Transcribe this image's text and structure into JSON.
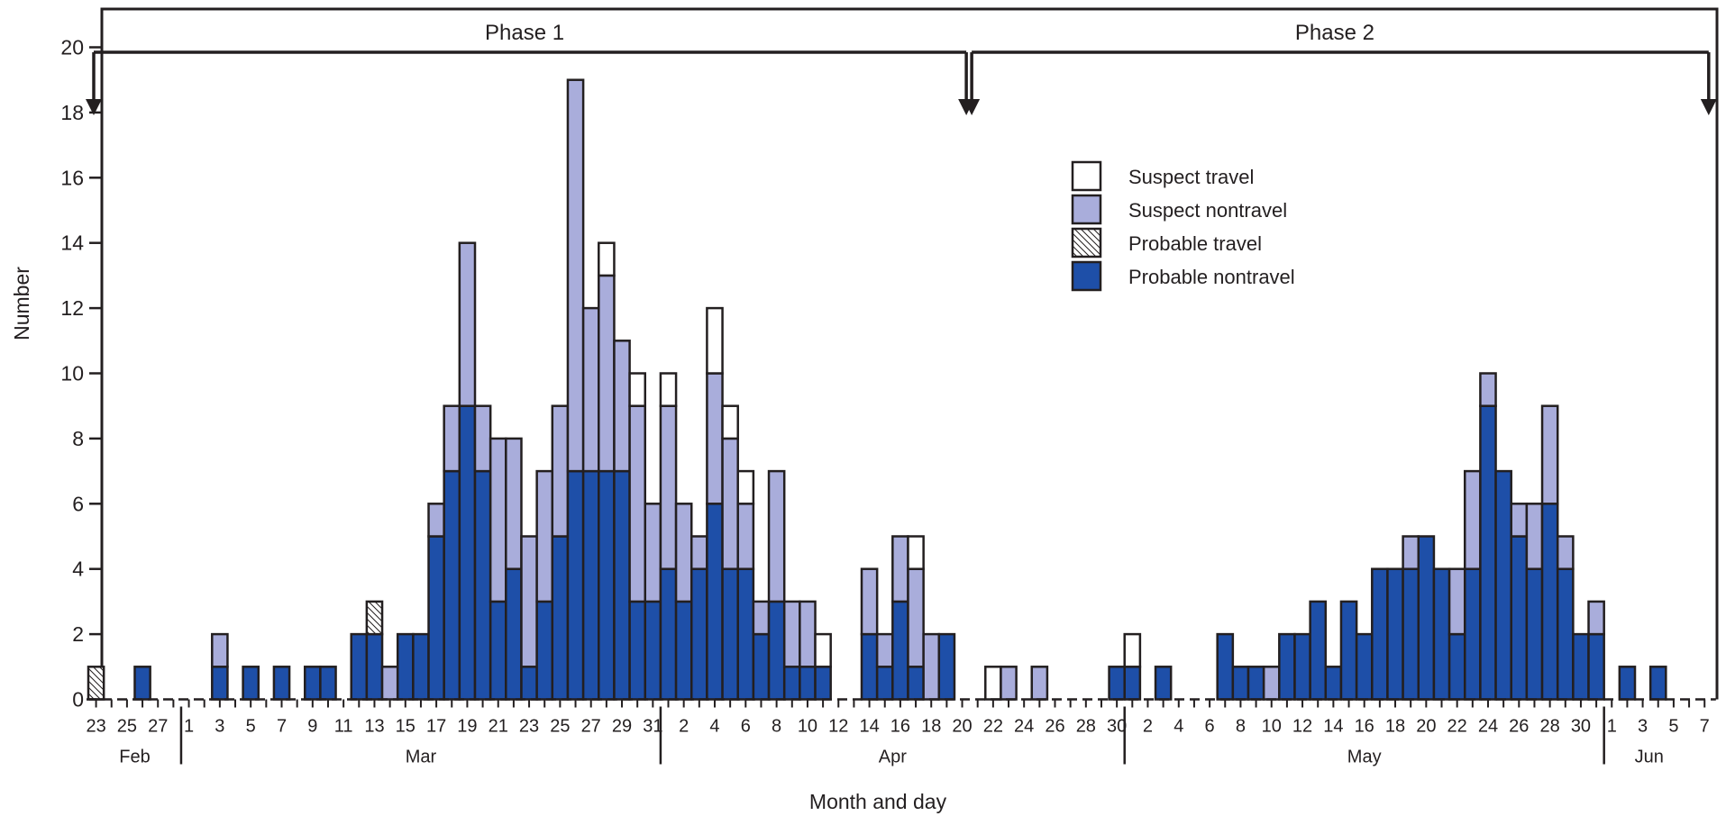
{
  "chart_data": {
    "type": "bar",
    "stacked": true,
    "xlabel": "Month and day",
    "ylabel": "Number",
    "ylim": [
      0,
      21
    ],
    "yticks": [
      0,
      2,
      4,
      6,
      8,
      10,
      12,
      14,
      16,
      18,
      20
    ],
    "x_start": "Feb 23",
    "x_end": "Jun 7",
    "x_tick_labels_every_other_day": true,
    "grid": false,
    "legend_position": "top-right",
    "months": [
      {
        "name": "Feb",
        "first_day": 23,
        "last_day": 28
      },
      {
        "name": "Mar",
        "first_day": 1,
        "last_day": 31
      },
      {
        "name": "Apr",
        "first_day": 1,
        "last_day": 30
      },
      {
        "name": "May",
        "first_day": 1,
        "last_day": 31
      },
      {
        "name": "Jun",
        "first_day": 1,
        "last_day": 7
      }
    ],
    "series": [
      {
        "name": "Probable nontravel",
        "color": "#1e4fa8",
        "key": "pn"
      },
      {
        "name": "Probable travel",
        "color": "hatch",
        "key": "pt"
      },
      {
        "name": "Suspect nontravel",
        "color": "#a9addb",
        "key": "sn"
      },
      {
        "name": "Suspect travel",
        "color": "#ffffff",
        "key": "st"
      }
    ],
    "legend_order": [
      "Suspect travel",
      "Suspect nontravel",
      "Probable travel",
      "Probable nontravel"
    ],
    "bars": [
      {
        "date": "Feb 23",
        "pn": 0,
        "pt": 1,
        "sn": 0,
        "st": 0
      },
      {
        "date": "Feb 26",
        "pn": 1,
        "pt": 0,
        "sn": 0,
        "st": 0
      },
      {
        "date": "Mar 3",
        "pn": 1,
        "pt": 0,
        "sn": 1,
        "st": 0
      },
      {
        "date": "Mar 5",
        "pn": 1,
        "pt": 0,
        "sn": 0,
        "st": 0
      },
      {
        "date": "Mar 7",
        "pn": 1,
        "pt": 0,
        "sn": 0,
        "st": 0
      },
      {
        "date": "Mar 9",
        "pn": 1,
        "pt": 0,
        "sn": 0,
        "st": 0
      },
      {
        "date": "Mar 10",
        "pn": 1,
        "pt": 0,
        "sn": 0,
        "st": 0
      },
      {
        "date": "Mar 12",
        "pn": 2,
        "pt": 0,
        "sn": 0,
        "st": 0
      },
      {
        "date": "Mar 13",
        "pn": 2,
        "pt": 1,
        "sn": 0,
        "st": 0
      },
      {
        "date": "Mar 14",
        "pn": 0,
        "pt": 0,
        "sn": 1,
        "st": 0
      },
      {
        "date": "Mar 15",
        "pn": 2,
        "pt": 0,
        "sn": 0,
        "st": 0
      },
      {
        "date": "Mar 16",
        "pn": 2,
        "pt": 0,
        "sn": 0,
        "st": 0
      },
      {
        "date": "Mar 17",
        "pn": 5,
        "pt": 0,
        "sn": 1,
        "st": 0
      },
      {
        "date": "Mar 18",
        "pn": 7,
        "pt": 0,
        "sn": 2,
        "st": 0
      },
      {
        "date": "Mar 19",
        "pn": 9,
        "pt": 0,
        "sn": 5,
        "st": 0
      },
      {
        "date": "Mar 20",
        "pn": 7,
        "pt": 0,
        "sn": 2,
        "st": 0
      },
      {
        "date": "Mar 21",
        "pn": 3,
        "pt": 0,
        "sn": 5,
        "st": 0
      },
      {
        "date": "Mar 22",
        "pn": 4,
        "pt": 0,
        "sn": 4,
        "st": 0
      },
      {
        "date": "Mar 23",
        "pn": 1,
        "pt": 0,
        "sn": 4,
        "st": 0
      },
      {
        "date": "Mar 24",
        "pn": 3,
        "pt": 0,
        "sn": 4,
        "st": 0
      },
      {
        "date": "Mar 25",
        "pn": 5,
        "pt": 0,
        "sn": 4,
        "st": 0
      },
      {
        "date": "Mar 26",
        "pn": 7,
        "pt": 0,
        "sn": 12,
        "st": 0
      },
      {
        "date": "Mar 27",
        "pn": 7,
        "pt": 0,
        "sn": 5,
        "st": 0
      },
      {
        "date": "Mar 28",
        "pn": 7,
        "pt": 0,
        "sn": 6,
        "st": 1
      },
      {
        "date": "Mar 29",
        "pn": 7,
        "pt": 0,
        "sn": 4,
        "st": 0
      },
      {
        "date": "Mar 30",
        "pn": 3,
        "pt": 0,
        "sn": 6,
        "st": 1
      },
      {
        "date": "Mar 31",
        "pn": 3,
        "pt": 0,
        "sn": 3,
        "st": 0
      },
      {
        "date": "Apr 1",
        "pn": 4,
        "pt": 0,
        "sn": 5,
        "st": 1
      },
      {
        "date": "Apr 2",
        "pn": 3,
        "pt": 0,
        "sn": 3,
        "st": 0
      },
      {
        "date": "Apr 3",
        "pn": 4,
        "pt": 0,
        "sn": 1,
        "st": 0
      },
      {
        "date": "Apr 4",
        "pn": 6,
        "pt": 0,
        "sn": 4,
        "st": 2
      },
      {
        "date": "Apr 5",
        "pn": 4,
        "pt": 0,
        "sn": 4,
        "st": 1
      },
      {
        "date": "Apr 6",
        "pn": 4,
        "pt": 0,
        "sn": 2,
        "st": 1
      },
      {
        "date": "Apr 7",
        "pn": 2,
        "pt": 0,
        "sn": 1,
        "st": 0
      },
      {
        "date": "Apr 8",
        "pn": 3,
        "pt": 0,
        "sn": 4,
        "st": 0
      },
      {
        "date": "Apr 9",
        "pn": 1,
        "pt": 0,
        "sn": 2,
        "st": 0
      },
      {
        "date": "Apr 10",
        "pn": 1,
        "pt": 0,
        "sn": 2,
        "st": 0
      },
      {
        "date": "Apr 11",
        "pn": 1,
        "pt": 0,
        "sn": 0,
        "st": 1
      },
      {
        "date": "Apr 14",
        "pn": 2,
        "pt": 0,
        "sn": 2,
        "st": 0
      },
      {
        "date": "Apr 15",
        "pn": 1,
        "pt": 0,
        "sn": 1,
        "st": 0
      },
      {
        "date": "Apr 16",
        "pn": 3,
        "pt": 0,
        "sn": 2,
        "st": 0
      },
      {
        "date": "Apr 17",
        "pn": 1,
        "pt": 0,
        "sn": 3,
        "st": 1
      },
      {
        "date": "Apr 18",
        "pn": 0,
        "pt": 0,
        "sn": 2,
        "st": 0
      },
      {
        "date": "Apr 19",
        "pn": 2,
        "pt": 0,
        "sn": 0,
        "st": 0
      },
      {
        "date": "Apr 22",
        "pn": 0,
        "pt": 0,
        "sn": 0,
        "st": 1
      },
      {
        "date": "Apr 23",
        "pn": 0,
        "pt": 0,
        "sn": 1,
        "st": 0
      },
      {
        "date": "Apr 25",
        "pn": 0,
        "pt": 0,
        "sn": 1,
        "st": 0
      },
      {
        "date": "Apr 30",
        "pn": 1,
        "pt": 0,
        "sn": 0,
        "st": 0
      },
      {
        "date": "May 1",
        "pn": 1,
        "pt": 0,
        "sn": 0,
        "st": 1
      },
      {
        "date": "May 3",
        "pn": 1,
        "pt": 0,
        "sn": 0,
        "st": 0
      },
      {
        "date": "May 7",
        "pn": 2,
        "pt": 0,
        "sn": 0,
        "st": 0
      },
      {
        "date": "May 8",
        "pn": 1,
        "pt": 0,
        "sn": 0,
        "st": 0
      },
      {
        "date": "May 9",
        "pn": 1,
        "pt": 0,
        "sn": 0,
        "st": 0
      },
      {
        "date": "May 10",
        "pn": 0,
        "pt": 0,
        "sn": 1,
        "st": 0
      },
      {
        "date": "May 11",
        "pn": 2,
        "pt": 0,
        "sn": 0,
        "st": 0
      },
      {
        "date": "May 12",
        "pn": 2,
        "pt": 0,
        "sn": 0,
        "st": 0
      },
      {
        "date": "May 13",
        "pn": 3,
        "pt": 0,
        "sn": 0,
        "st": 0
      },
      {
        "date": "May 14",
        "pn": 1,
        "pt": 0,
        "sn": 0,
        "st": 0
      },
      {
        "date": "May 15",
        "pn": 3,
        "pt": 0,
        "sn": 0,
        "st": 0
      },
      {
        "date": "May 16",
        "pn": 2,
        "pt": 0,
        "sn": 0,
        "st": 0
      },
      {
        "date": "May 17",
        "pn": 4,
        "pt": 0,
        "sn": 0,
        "st": 0
      },
      {
        "date": "May 18",
        "pn": 4,
        "pt": 0,
        "sn": 0,
        "st": 0
      },
      {
        "date": "May 19",
        "pn": 4,
        "pt": 0,
        "sn": 1,
        "st": 0
      },
      {
        "date": "May 20",
        "pn": 5,
        "pt": 0,
        "sn": 0,
        "st": 0
      },
      {
        "date": "May 21",
        "pn": 4,
        "pt": 0,
        "sn": 0,
        "st": 0
      },
      {
        "date": "May 22",
        "pn": 2,
        "pt": 0,
        "sn": 2,
        "st": 0
      },
      {
        "date": "May 23",
        "pn": 4,
        "pt": 0,
        "sn": 3,
        "st": 0
      },
      {
        "date": "May 24",
        "pn": 9,
        "pt": 0,
        "sn": 1,
        "st": 0
      },
      {
        "date": "May 25",
        "pn": 7,
        "pt": 0,
        "sn": 0,
        "st": 0
      },
      {
        "date": "May 26",
        "pn": 5,
        "pt": 0,
        "sn": 1,
        "st": 0
      },
      {
        "date": "May 27",
        "pn": 4,
        "pt": 0,
        "sn": 2,
        "st": 0
      },
      {
        "date": "May 28",
        "pn": 6,
        "pt": 0,
        "sn": 3,
        "st": 0
      },
      {
        "date": "May 29",
        "pn": 4,
        "pt": 0,
        "sn": 1,
        "st": 0
      },
      {
        "date": "May 30",
        "pn": 2,
        "pt": 0,
        "sn": 0,
        "st": 0
      },
      {
        "date": "May 31",
        "pn": 2,
        "pt": 0,
        "sn": 1,
        "st": 0
      },
      {
        "date": "Jun 2",
        "pn": 1,
        "pt": 0,
        "sn": 0,
        "st": 0
      },
      {
        "date": "Jun 4",
        "pn": 1,
        "pt": 0,
        "sn": 0,
        "st": 0
      }
    ],
    "phases": [
      {
        "label": "Phase 1",
        "start": "Feb 23",
        "end": "Apr 20"
      },
      {
        "label": "Phase 2",
        "start": "Apr 21",
        "end": "Jun 7"
      }
    ]
  }
}
